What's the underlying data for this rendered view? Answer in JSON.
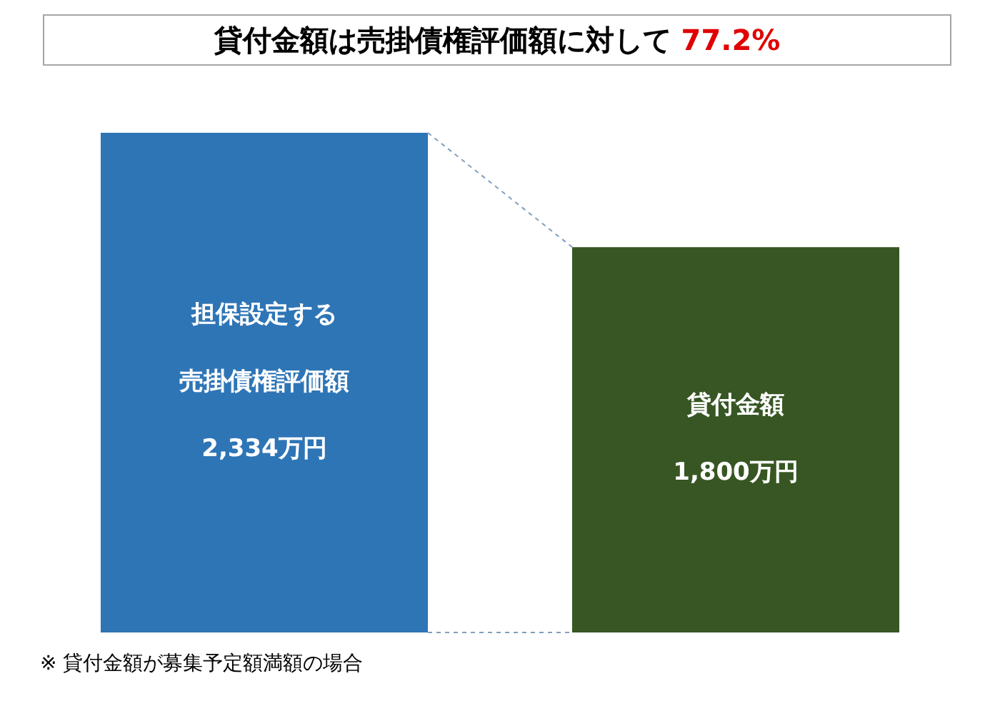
{
  "chart_data": {
    "type": "bar",
    "title": "貸付金額は売掛債権評価額に対して 77.2%",
    "categories": [
      "担保設定する売掛債権評価額",
      "貸付金額"
    ],
    "values": [
      2334,
      1800
    ],
    "colors": [
      "#2e75b6",
      "#375623"
    ],
    "value_labels": [
      "2,334万円",
      "1,800万円"
    ],
    "annotations": [
      "※ 貸付金額が募集予定額満額の場合"
    ]
  }
}
